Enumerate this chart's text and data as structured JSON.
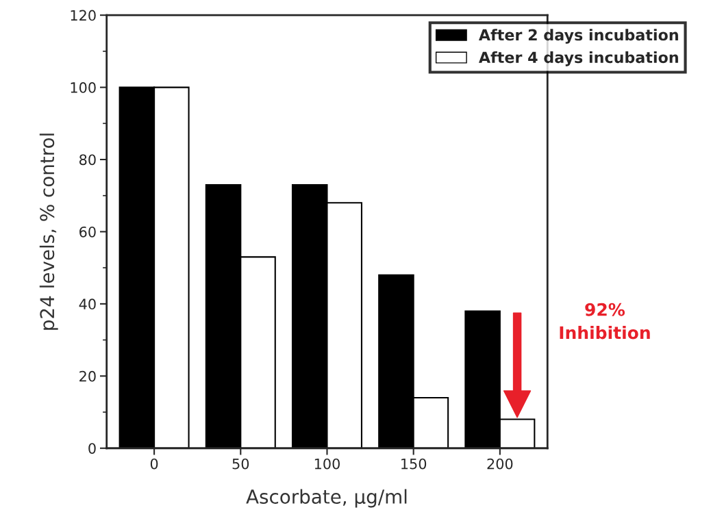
{
  "chart_data": {
    "type": "bar",
    "xlabel": "Ascorbate, µg/ml",
    "ylabel": "p24 levels, % control",
    "categories": [
      "0",
      "50",
      "100",
      "150",
      "200"
    ],
    "series": [
      {
        "name": "After 2 days incubation",
        "color": "#000000",
        "values": [
          100,
          73,
          73,
          48,
          38
        ]
      },
      {
        "name": "After 4 days incubation",
        "color": "#ffffff",
        "values": [
          100,
          53,
          68,
          14,
          8
        ]
      }
    ],
    "ylim": [
      0,
      120
    ],
    "yticks": [
      0,
      20,
      40,
      60,
      80,
      100,
      120
    ],
    "grid": false,
    "legend": "top right",
    "annotations": [
      "92%\nInhibition"
    ]
  }
}
